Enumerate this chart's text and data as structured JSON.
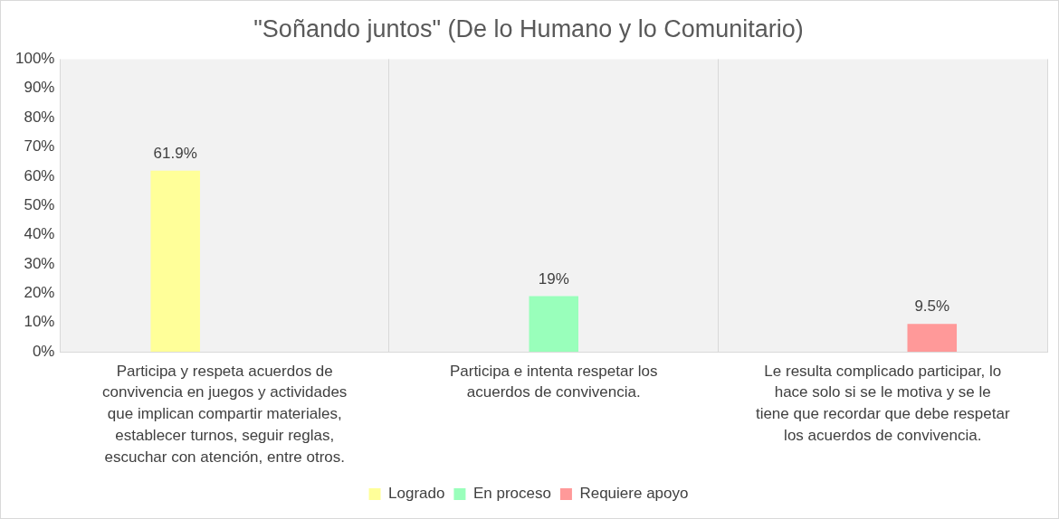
{
  "chart_data": {
    "type": "bar",
    "title": "\"Soñando juntos\" (De lo Humano y lo Comunitario)",
    "categories": [
      "Participa y respeta acuerdos de convivencia en juegos y actividades que implican compartir materiales, establecer turnos, seguir reglas, escuchar con atención, entre otros.",
      "Participa e intenta respetar los acuerdos de convivencia.",
      "Le resulta complicado participar, lo hace solo si se le motiva y se le tiene que recordar que debe respetar los acuerdos de convivencia."
    ],
    "series": [
      {
        "name": "Logrado",
        "color": "#ffff99",
        "values": [
          61.9,
          null,
          null
        ],
        "value_labels": [
          "61.9%",
          null,
          null
        ]
      },
      {
        "name": "En proceso",
        "color": "#99ffbb",
        "values": [
          null,
          19,
          null
        ],
        "value_labels": [
          null,
          "19%",
          null
        ]
      },
      {
        "name": "Requiere apoyo",
        "color": "#ff9999",
        "values": [
          null,
          null,
          9.5
        ],
        "value_labels": [
          null,
          null,
          "9.5%"
        ]
      }
    ],
    "ylim": [
      0,
      100
    ],
    "yticks": [
      {
        "value": 0,
        "label": "0%"
      },
      {
        "value": 10,
        "label": "10%"
      },
      {
        "value": 20,
        "label": "20%"
      },
      {
        "value": 30,
        "label": "30%"
      },
      {
        "value": 40,
        "label": "40%"
      },
      {
        "value": 50,
        "label": "50%"
      },
      {
        "value": 60,
        "label": "60%"
      },
      {
        "value": 70,
        "label": "70%"
      },
      {
        "value": 80,
        "label": "80%"
      },
      {
        "value": 90,
        "label": "90%"
      },
      {
        "value": 100,
        "label": "100%"
      }
    ],
    "grid": "x",
    "legend": "bottom"
  }
}
